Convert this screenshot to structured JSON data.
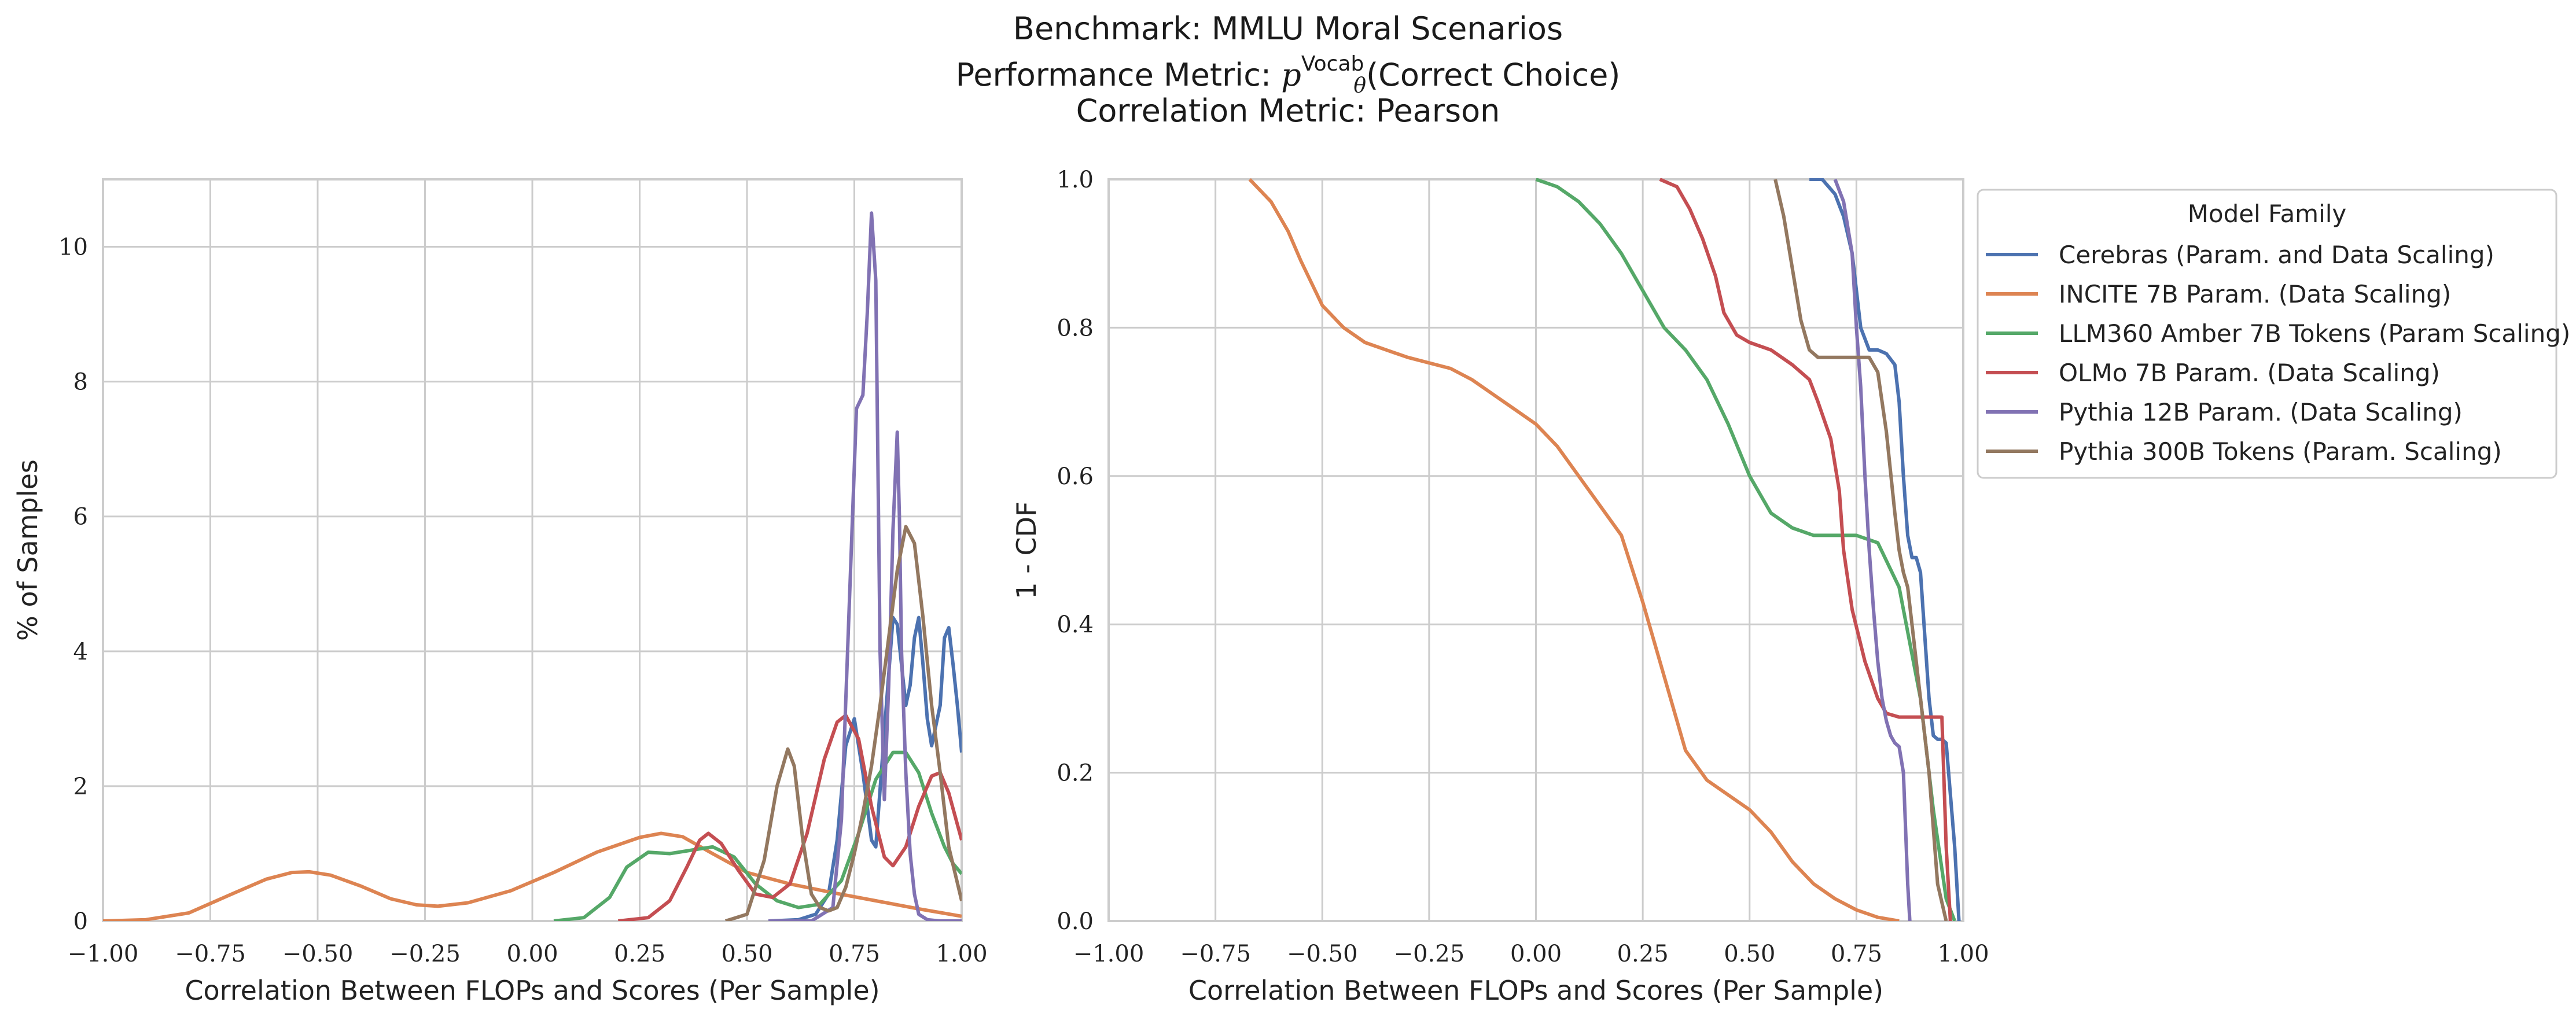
{
  "title": {
    "line1": "Benchmark: MMLU Moral Scenarios",
    "line2_prefix": "Performance Metric: ",
    "line2_symbol": "p",
    "line2_superscript": "Vocab",
    "line2_subscript": "θ",
    "line2_suffix": "(Correct Choice)",
    "line3": "Correlation Metric: Pearson"
  },
  "colors": {
    "Cerebras": "#4c72b0",
    "INCITE": "#dd8452",
    "LLM360": "#55a868",
    "OLMo": "#c44e52",
    "Pythia12B": "#8172b3",
    "Pythia300B": "#937860",
    "grid": "#cccccc"
  },
  "chart_data": [
    {
      "type": "line",
      "subtype": "kde",
      "xlabel": "Correlation Between FLOPs and Scores (Per Sample)",
      "ylabel": "% of Samples",
      "xlim": [
        -1.0,
        1.0
      ],
      "ylim": [
        0,
        11
      ],
      "xticks": [
        "−1.00",
        "−0.75",
        "−0.50",
        "−0.25",
        "0.00",
        "0.25",
        "0.50",
        "0.75",
        "1.00"
      ],
      "xtick_values": [
        -1.0,
        -0.75,
        -0.5,
        -0.25,
        0.0,
        0.25,
        0.5,
        0.75,
        1.0
      ],
      "yticks": [
        "0",
        "2",
        "4",
        "6",
        "8",
        "10"
      ],
      "ytick_values": [
        0,
        2,
        4,
        6,
        8,
        10
      ],
      "grid": true,
      "series": [
        {
          "name": "Cerebras (Param. and Data Scaling)",
          "color_key": "Cerebras",
          "x": [
            0.55,
            0.62,
            0.66,
            0.69,
            0.71,
            0.73,
            0.75,
            0.77,
            0.79,
            0.8,
            0.82,
            0.84,
            0.85,
            0.87,
            0.88,
            0.89,
            0.9,
            0.91,
            0.92,
            0.93,
            0.95,
            0.96,
            0.97,
            0.98,
            0.99,
            1.0
          ],
          "y": [
            0,
            0.02,
            0.1,
            0.4,
            1.2,
            2.6,
            3.0,
            2.2,
            1.2,
            1.1,
            2.8,
            4.5,
            4.4,
            3.2,
            3.5,
            4.2,
            4.5,
            3.8,
            3.0,
            2.6,
            3.2,
            4.2,
            4.35,
            3.8,
            3.2,
            2.5
          ]
        },
        {
          "name": "INCITE 7B Param. (Data Scaling)",
          "color_key": "INCITE",
          "x": [
            -1.0,
            -0.9,
            -0.8,
            -0.7,
            -0.62,
            -0.56,
            -0.52,
            -0.47,
            -0.4,
            -0.33,
            -0.27,
            -0.22,
            -0.15,
            -0.05,
            0.05,
            0.15,
            0.25,
            0.3,
            0.35,
            0.42,
            0.5,
            0.6,
            0.7,
            0.8,
            0.9,
            1.0
          ],
          "y": [
            0,
            0.02,
            0.12,
            0.4,
            0.62,
            0.72,
            0.73,
            0.68,
            0.52,
            0.33,
            0.24,
            0.22,
            0.27,
            0.45,
            0.72,
            1.02,
            1.24,
            1.3,
            1.25,
            1.0,
            0.72,
            0.55,
            0.42,
            0.3,
            0.18,
            0.07
          ]
        },
        {
          "name": "LLM360 Amber 7B Tokens (Param Scaling)",
          "color_key": "LLM360",
          "x": [
            0.05,
            0.12,
            0.18,
            0.22,
            0.27,
            0.32,
            0.37,
            0.42,
            0.47,
            0.52,
            0.57,
            0.62,
            0.67,
            0.72,
            0.76,
            0.8,
            0.84,
            0.87,
            0.9,
            0.93,
            0.96,
            0.98,
            1.0
          ],
          "y": [
            0,
            0.05,
            0.35,
            0.8,
            1.02,
            1.0,
            1.05,
            1.1,
            0.95,
            0.55,
            0.3,
            0.2,
            0.25,
            0.6,
            1.3,
            2.1,
            2.5,
            2.5,
            2.2,
            1.6,
            1.1,
            0.85,
            0.7
          ]
        },
        {
          "name": "OLMo 7B Param. (Data Scaling)",
          "color_key": "OLMo",
          "x": [
            0.2,
            0.27,
            0.32,
            0.36,
            0.39,
            0.41,
            0.44,
            0.48,
            0.52,
            0.56,
            0.6,
            0.64,
            0.68,
            0.71,
            0.73,
            0.76,
            0.79,
            0.82,
            0.84,
            0.87,
            0.9,
            0.93,
            0.95,
            0.97,
            1.0
          ],
          "y": [
            0,
            0.05,
            0.3,
            0.8,
            1.2,
            1.3,
            1.15,
            0.75,
            0.4,
            0.35,
            0.55,
            1.3,
            2.4,
            2.95,
            3.05,
            2.7,
            1.7,
            0.95,
            0.82,
            1.1,
            1.7,
            2.15,
            2.2,
            1.9,
            1.2
          ]
        },
        {
          "name": "Pythia 12B Param. (Data Scaling)",
          "color_key": "Pythia12B",
          "x": [
            0.55,
            0.65,
            0.7,
            0.72,
            0.74,
            0.755,
            0.77,
            0.78,
            0.79,
            0.8,
            0.81,
            0.82,
            0.83,
            0.84,
            0.85,
            0.855,
            0.86,
            0.87,
            0.88,
            0.89,
            0.9,
            0.92,
            0.95,
            1.0
          ],
          "y": [
            0,
            0,
            0.2,
            1.5,
            5.0,
            7.6,
            7.8,
            9.0,
            10.5,
            9.5,
            4.0,
            1.8,
            3.5,
            5.8,
            7.25,
            6.0,
            4.0,
            2.2,
            1.0,
            0.4,
            0.1,
            0.02,
            0,
            0
          ]
        },
        {
          "name": "Pythia 300B Tokens (Param. Scaling)",
          "color_key": "Pythia300B",
          "x": [
            0.45,
            0.5,
            0.54,
            0.57,
            0.595,
            0.61,
            0.63,
            0.65,
            0.67,
            0.69,
            0.71,
            0.73,
            0.75,
            0.77,
            0.79,
            0.81,
            0.83,
            0.85,
            0.87,
            0.89,
            0.91,
            0.93,
            0.95,
            0.97,
            1.0
          ],
          "y": [
            0,
            0.1,
            0.9,
            2.0,
            2.55,
            2.3,
            1.2,
            0.4,
            0.2,
            0.15,
            0.2,
            0.5,
            1.0,
            1.6,
            2.3,
            3.2,
            4.2,
            5.2,
            5.85,
            5.6,
            4.5,
            3.2,
            2.2,
            1.1,
            0.3
          ]
        }
      ]
    },
    {
      "type": "line",
      "subtype": "survival",
      "xlabel": "Correlation Between FLOPs and Scores (Per Sample)",
      "ylabel": "1 - CDF",
      "xlim": [
        -1.0,
        1.0
      ],
      "ylim": [
        0,
        1.0
      ],
      "xticks": [
        "−1.00",
        "−0.75",
        "−0.50",
        "−0.25",
        "0.00",
        "0.25",
        "0.50",
        "0.75",
        "1.00"
      ],
      "xtick_values": [
        -1.0,
        -0.75,
        -0.5,
        -0.25,
        0.0,
        0.25,
        0.5,
        0.75,
        1.0
      ],
      "yticks": [
        "0.0",
        "0.2",
        "0.4",
        "0.6",
        "0.8",
        "1.0"
      ],
      "ytick_values": [
        0.0,
        0.2,
        0.4,
        0.6,
        0.8,
        1.0
      ],
      "grid": true,
      "legend": {
        "title": "Model Family",
        "placement": "outside-right",
        "entries": [
          "Cerebras (Param. and Data Scaling)",
          "INCITE 7B Param. (Data Scaling)",
          "LLM360 Amber 7B Tokens (Param Scaling)",
          "OLMo 7B Param. (Data Scaling)",
          "Pythia 12B Param. (Data Scaling)",
          "Pythia 300B Tokens (Param. Scaling)"
        ]
      },
      "series": [
        {
          "name": "Cerebras (Param. and Data Scaling)",
          "color_key": "Cerebras",
          "x": [
            0.64,
            0.67,
            0.7,
            0.72,
            0.74,
            0.75,
            0.76,
            0.78,
            0.8,
            0.82,
            0.84,
            0.85,
            0.86,
            0.87,
            0.88,
            0.89,
            0.9,
            0.92,
            0.93,
            0.94,
            0.95,
            0.96,
            0.98,
            0.99
          ],
          "y": [
            1.0,
            1.0,
            0.98,
            0.95,
            0.9,
            0.85,
            0.8,
            0.77,
            0.77,
            0.765,
            0.75,
            0.7,
            0.6,
            0.52,
            0.49,
            0.49,
            0.47,
            0.3,
            0.25,
            0.245,
            0.245,
            0.24,
            0.1,
            0.0
          ]
        },
        {
          "name": "INCITE 7B Param. (Data Scaling)",
          "color_key": "INCITE",
          "x": [
            -0.67,
            -0.62,
            -0.58,
            -0.55,
            -0.5,
            -0.45,
            -0.4,
            -0.35,
            -0.3,
            -0.2,
            -0.15,
            -0.1,
            -0.05,
            0.0,
            0.05,
            0.1,
            0.15,
            0.2,
            0.25,
            0.3,
            0.35,
            0.4,
            0.45,
            0.5,
            0.55,
            0.6,
            0.65,
            0.7,
            0.75,
            0.8,
            0.85
          ],
          "y": [
            1.0,
            0.97,
            0.93,
            0.89,
            0.83,
            0.8,
            0.78,
            0.77,
            0.76,
            0.745,
            0.73,
            0.71,
            0.69,
            0.67,
            0.64,
            0.6,
            0.56,
            0.52,
            0.43,
            0.33,
            0.23,
            0.19,
            0.17,
            0.15,
            0.12,
            0.08,
            0.05,
            0.03,
            0.015,
            0.005,
            0.0
          ]
        },
        {
          "name": "LLM360 Amber 7B Tokens (Param Scaling)",
          "color_key": "LLM360",
          "x": [
            0.0,
            0.05,
            0.1,
            0.15,
            0.2,
            0.25,
            0.3,
            0.35,
            0.4,
            0.45,
            0.5,
            0.55,
            0.6,
            0.65,
            0.7,
            0.75,
            0.8,
            0.85,
            0.9,
            0.93,
            0.96,
            0.98
          ],
          "y": [
            1.0,
            0.99,
            0.97,
            0.94,
            0.9,
            0.85,
            0.8,
            0.77,
            0.73,
            0.67,
            0.6,
            0.55,
            0.53,
            0.52,
            0.52,
            0.52,
            0.51,
            0.45,
            0.3,
            0.15,
            0.03,
            0.0
          ]
        },
        {
          "name": "OLMo 7B Param. (Data Scaling)",
          "color_key": "OLMo",
          "x": [
            0.29,
            0.33,
            0.36,
            0.39,
            0.42,
            0.44,
            0.47,
            0.5,
            0.55,
            0.6,
            0.64,
            0.66,
            0.69,
            0.71,
            0.72,
            0.74,
            0.77,
            0.8,
            0.82,
            0.85,
            0.9,
            0.93,
            0.95,
            0.96,
            0.97
          ],
          "y": [
            1.0,
            0.99,
            0.96,
            0.92,
            0.87,
            0.82,
            0.79,
            0.78,
            0.77,
            0.75,
            0.73,
            0.7,
            0.65,
            0.58,
            0.5,
            0.42,
            0.35,
            0.3,
            0.28,
            0.275,
            0.275,
            0.275,
            0.275,
            0.1,
            0.0
          ]
        },
        {
          "name": "Pythia 12B Param. (Data Scaling)",
          "color_key": "Pythia12B",
          "x": [
            0.7,
            0.72,
            0.74,
            0.75,
            0.76,
            0.77,
            0.78,
            0.79,
            0.8,
            0.81,
            0.82,
            0.83,
            0.84,
            0.85,
            0.86,
            0.87,
            0.875
          ],
          "y": [
            1.0,
            0.97,
            0.9,
            0.8,
            0.72,
            0.6,
            0.5,
            0.42,
            0.35,
            0.3,
            0.27,
            0.25,
            0.24,
            0.235,
            0.2,
            0.05,
            0.0
          ]
        },
        {
          "name": "Pythia 300B Tokens (Param. Scaling)",
          "color_key": "Pythia300B",
          "x": [
            0.56,
            0.58,
            0.6,
            0.62,
            0.64,
            0.66,
            0.7,
            0.75,
            0.78,
            0.8,
            0.82,
            0.84,
            0.85,
            0.86,
            0.87,
            0.88,
            0.9,
            0.92,
            0.94,
            0.96
          ],
          "y": [
            1.0,
            0.95,
            0.88,
            0.81,
            0.77,
            0.76,
            0.76,
            0.76,
            0.76,
            0.74,
            0.66,
            0.55,
            0.5,
            0.47,
            0.45,
            0.4,
            0.3,
            0.2,
            0.05,
            0.0
          ]
        }
      ]
    }
  ]
}
